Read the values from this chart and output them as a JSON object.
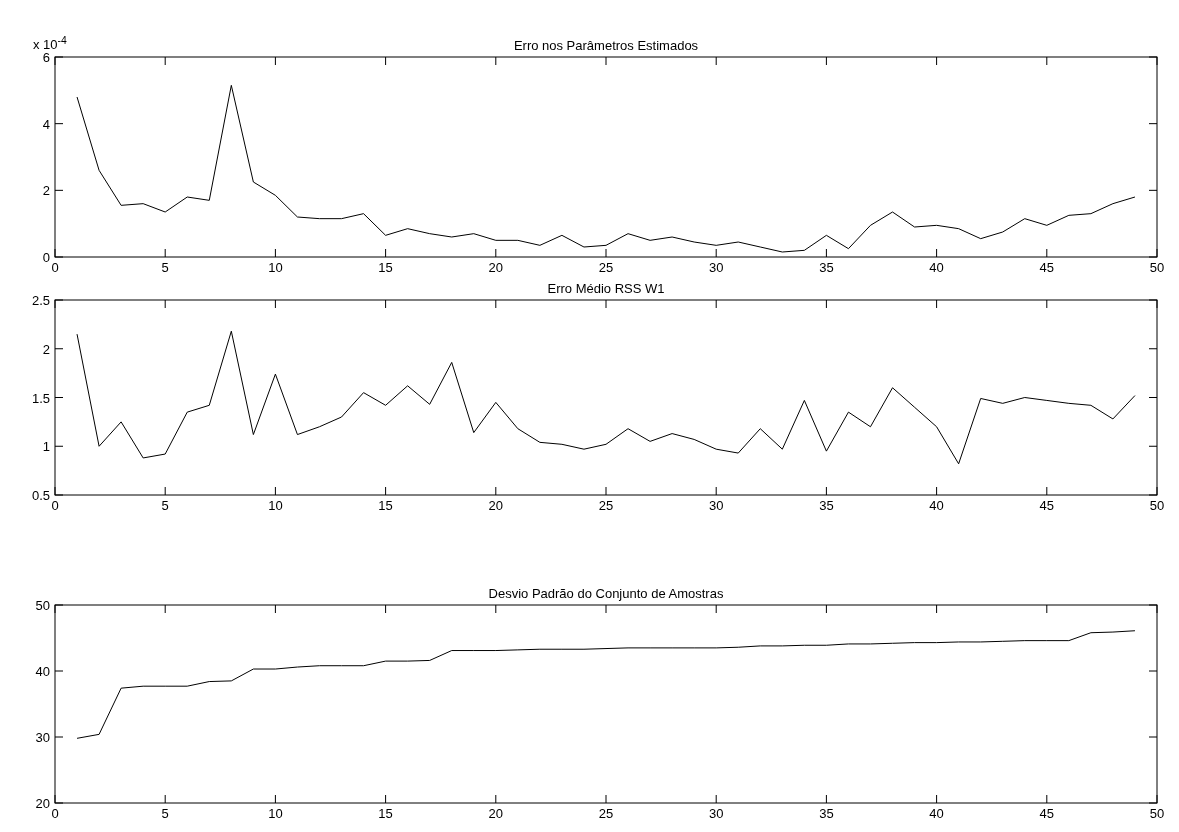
{
  "chart_data": [
    {
      "type": "line",
      "title": "Erro nos Parâmetros Estimados",
      "annotations": [
        "x 10$^{-4}$"
      ],
      "x": [
        1,
        2,
        3,
        4,
        5,
        6,
        7,
        8,
        9,
        10,
        11,
        12,
        13,
        14,
        15,
        16,
        17,
        18,
        19,
        20,
        21,
        22,
        23,
        24,
        25,
        26,
        27,
        28,
        29,
        30,
        31,
        32,
        33,
        34,
        35,
        36,
        37,
        38,
        39,
        40,
        41,
        42,
        43,
        44,
        45,
        46,
        47,
        48,
        49
      ],
      "series": [
        {
          "color": "#000000",
          "values": [
            4.8,
            2.6,
            1.55,
            1.6,
            1.35,
            1.8,
            1.7,
            5.15,
            2.25,
            1.85,
            1.2,
            1.15,
            1.15,
            1.3,
            0.65,
            0.85,
            0.7,
            0.6,
            0.7,
            0.5,
            0.5,
            0.35,
            0.65,
            0.3,
            0.35,
            0.7,
            0.5,
            0.6,
            0.45,
            0.35,
            0.45,
            0.3,
            0.15,
            0.2,
            0.65,
            0.25,
            0.95,
            1.35,
            0.9,
            0.95,
            0.85,
            0.55,
            0.75,
            1.15,
            0.95,
            1.25,
            1.3,
            1.6,
            1.8
          ]
        }
      ],
      "xlim": [
        0,
        50
      ],
      "xticks": [
        0,
        5,
        10,
        15,
        20,
        25,
        30,
        35,
        40,
        45,
        50
      ],
      "ylim": [
        0,
        6
      ],
      "yticks": [
        0,
        2,
        4,
        6
      ]
    },
    {
      "type": "line",
      "title": "Erro Médio RSS W1",
      "x": [
        1,
        2,
        3,
        4,
        5,
        6,
        7,
        8,
        9,
        10,
        11,
        12,
        13,
        14,
        15,
        16,
        17,
        18,
        19,
        20,
        21,
        22,
        23,
        24,
        25,
        26,
        27,
        28,
        29,
        30,
        31,
        32,
        33,
        34,
        35,
        36,
        37,
        38,
        39,
        40,
        41,
        42,
        43,
        44,
        45,
        46,
        47,
        48,
        49
      ],
      "series": [
        {
          "color": "#000000",
          "values": [
            2.15,
            1.0,
            1.25,
            0.88,
            0.92,
            1.35,
            1.42,
            2.18,
            1.12,
            1.74,
            1.12,
            1.2,
            1.3,
            1.55,
            1.42,
            1.62,
            1.43,
            1.86,
            1.14,
            1.45,
            1.18,
            1.04,
            1.02,
            0.97,
            1.02,
            1.18,
            1.05,
            1.13,
            1.07,
            0.97,
            0.93,
            1.18,
            0.97,
            1.47,
            0.95,
            1.35,
            1.2,
            1.6,
            1.4,
            1.2,
            0.82,
            1.49,
            1.44,
            1.5,
            1.47,
            1.44,
            1.42,
            1.28,
            1.52
          ]
        }
      ],
      "xlim": [
        0,
        50
      ],
      "xticks": [
        0,
        5,
        10,
        15,
        20,
        25,
        30,
        35,
        40,
        45,
        50
      ],
      "ylim": [
        0.5,
        2.5
      ],
      "yticks": [
        0.5,
        1,
        1.5,
        2,
        2.5
      ]
    },
    {
      "type": "line",
      "title": "Desvio Padrão do Conjunto de Amostras",
      "x": [
        1,
        2,
        3,
        4,
        5,
        6,
        7,
        8,
        9,
        10,
        11,
        12,
        13,
        14,
        15,
        16,
        17,
        18,
        19,
        20,
        21,
        22,
        23,
        24,
        25,
        26,
        27,
        28,
        29,
        30,
        31,
        32,
        33,
        34,
        35,
        36,
        37,
        38,
        39,
        40,
        41,
        42,
        43,
        44,
        45,
        46,
        47,
        48,
        49
      ],
      "series": [
        {
          "color": "#000000",
          "values": [
            29.8,
            30.4,
            37.4,
            37.7,
            37.7,
            37.7,
            38.4,
            38.5,
            40.3,
            40.3,
            40.6,
            40.8,
            40.8,
            40.8,
            41.5,
            41.5,
            41.6,
            43.1,
            43.1,
            43.1,
            43.2,
            43.3,
            43.3,
            43.3,
            43.4,
            43.5,
            43.5,
            43.5,
            43.5,
            43.5,
            43.6,
            43.8,
            43.8,
            43.9,
            43.9,
            44.1,
            44.1,
            44.2,
            44.3,
            44.3,
            44.4,
            44.4,
            44.5,
            44.6,
            44.6,
            44.6,
            45.8,
            45.9,
            46.1
          ]
        }
      ],
      "xlim": [
        0,
        50
      ],
      "xticks": [
        0,
        5,
        10,
        15,
        20,
        25,
        30,
        35,
        40,
        45,
        50
      ],
      "ylim": [
        20,
        50
      ],
      "yticks": [
        20,
        30,
        40,
        50
      ]
    }
  ]
}
